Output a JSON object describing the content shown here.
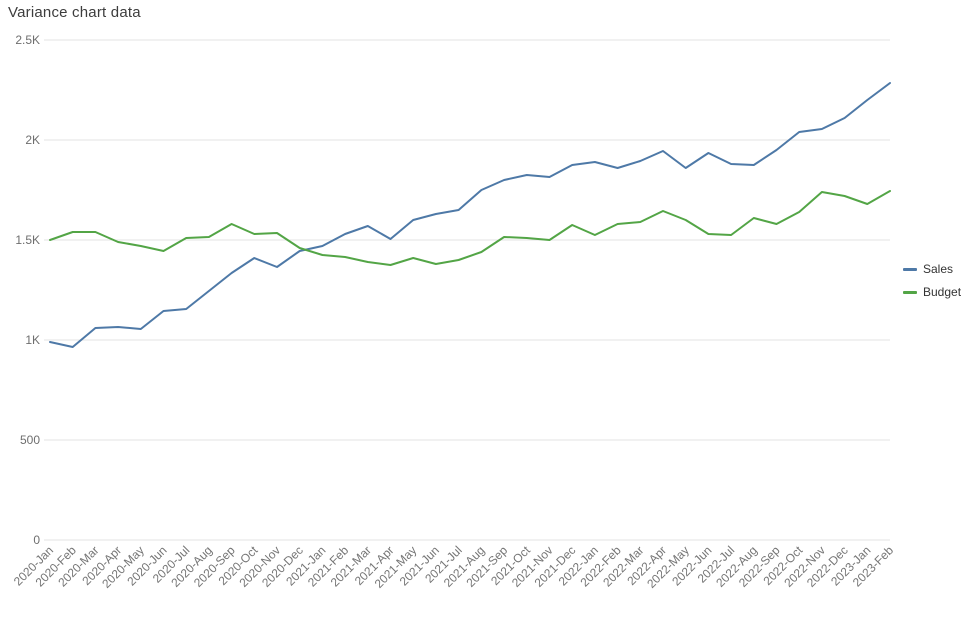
{
  "page": {
    "title": "Variance chart data"
  },
  "chart_data": {
    "type": "line",
    "title": "Variance chart data",
    "xlabel": "",
    "ylabel": "",
    "ylim": [
      0,
      2500
    ],
    "grid": true,
    "legend_position": "right",
    "yticks": [
      {
        "value": 0,
        "label": "0"
      },
      {
        "value": 500,
        "label": "500"
      },
      {
        "value": 1000,
        "label": "1K"
      },
      {
        "value": 1500,
        "label": "1.5K"
      },
      {
        "value": 2000,
        "label": "2K"
      },
      {
        "value": 2500,
        "label": "2.5K"
      }
    ],
    "x": [
      "2020-Jan",
      "2020-Feb",
      "2020-Mar",
      "2020-Apr",
      "2020-May",
      "2020-Jun",
      "2020-Jul",
      "2020-Aug",
      "2020-Sep",
      "2020-Oct",
      "2020-Nov",
      "2020-Dec",
      "2021-Jan",
      "2021-Feb",
      "2021-Mar",
      "2021-Apr",
      "2021-May",
      "2021-Jun",
      "2021-Jul",
      "2021-Aug",
      "2021-Sep",
      "2021-Oct",
      "2021-Nov",
      "2021-Dec",
      "2022-Jan",
      "2022-Feb",
      "2022-Mar",
      "2022-Apr",
      "2022-May",
      "2022-Jun",
      "2022-Jul",
      "2022-Aug",
      "2022-Sep",
      "2022-Oct",
      "2022-Nov",
      "2022-Dec",
      "2023-Jan",
      "2023-Feb"
    ],
    "series": [
      {
        "name": "Sales",
        "color": "#4e79a7",
        "values": [
          990,
          965,
          1060,
          1065,
          1055,
          1145,
          1155,
          1245,
          1335,
          1410,
          1365,
          1445,
          1470,
          1530,
          1570,
          1505,
          1600,
          1630,
          1650,
          1750,
          1800,
          1825,
          1815,
          1875,
          1890,
          1860,
          1895,
          1945,
          1860,
          1935,
          1880,
          1875,
          1950,
          2040,
          2055,
          2110,
          2200,
          2285
        ]
      },
      {
        "name": "Budget",
        "color": "#53a546",
        "values": [
          1500,
          1540,
          1540,
          1490,
          1470,
          1445,
          1510,
          1515,
          1580,
          1530,
          1535,
          1460,
          1425,
          1415,
          1390,
          1375,
          1410,
          1380,
          1400,
          1440,
          1515,
          1510,
          1500,
          1575,
          1525,
          1580,
          1590,
          1645,
          1600,
          1530,
          1525,
          1610,
          1580,
          1640,
          1740,
          1720,
          1680,
          1745
        ]
      }
    ]
  }
}
